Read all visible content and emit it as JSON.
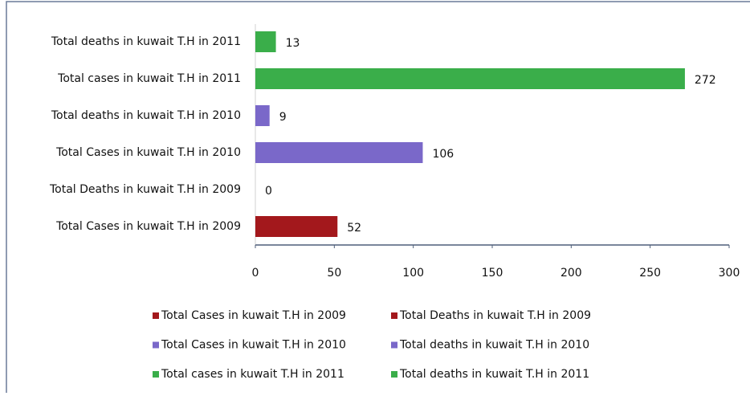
{
  "chart_data": {
    "type": "bar",
    "orientation": "horizontal",
    "categories": [
      "Total Cases in kuwait T.H in 2009",
      "Total Deaths in kuwait T.H in 2009",
      "Total Cases in kuwait T.H in 2010",
      "Total deaths in kuwait T.H in 2010",
      "Total cases in kuwait T.H in 2011",
      "Total deaths in kuwait T.H in 2011"
    ],
    "values": [
      52,
      0,
      106,
      9,
      272,
      13
    ],
    "colors": [
      "#a3181c",
      "#a3181c",
      "#7a68c9",
      "#7a68c9",
      "#3aae4a",
      "#3aae4a"
    ],
    "xlim": [
      0,
      300
    ],
    "xticks": [
      0,
      50,
      100,
      150,
      200,
      250,
      300
    ],
    "legend": "bottom"
  }
}
